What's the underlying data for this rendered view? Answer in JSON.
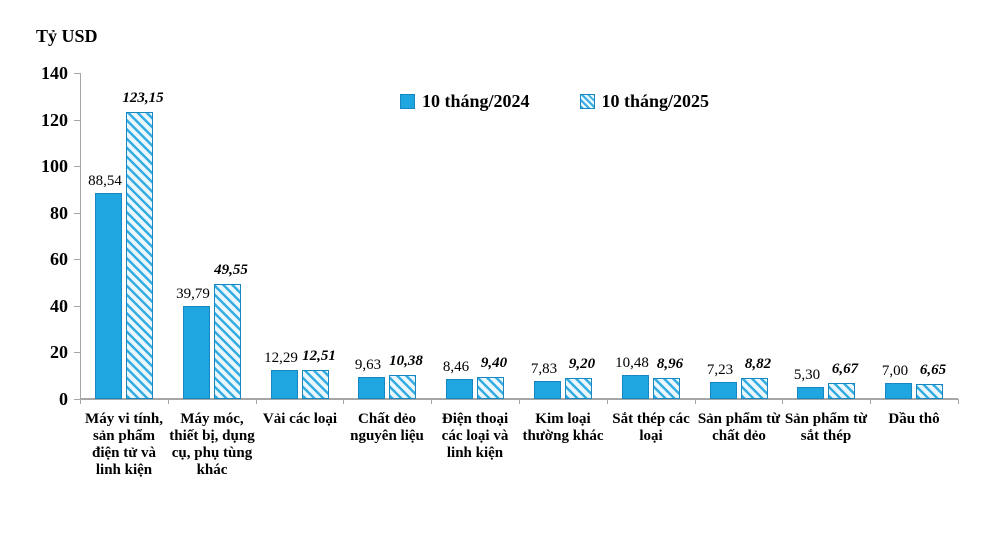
{
  "chart_data": {
    "type": "bar",
    "axis_title": "Tỷ USD",
    "xlabel": "",
    "ylabel": "Tỷ USD",
    "ylim": [
      0,
      140
    ],
    "ytick_step": 20,
    "grid": false,
    "legend_position": "top-center-inside",
    "decimal_separator": ",",
    "value_label_decimals": 2,
    "categories": [
      "Máy vi tính, sản phẩm điện tử và linh kiện",
      "Máy móc, thiết bị, dụng cụ, phụ tùng khác",
      "Vải các loại",
      "Chất dẻo nguyên liệu",
      "Điện thoại các loại và linh kiện",
      "Kim loại thường khác",
      "Sắt thép các loại",
      "Sản phẩm từ chất dẻo",
      "Sản phẩm từ sắt thép",
      "Dầu thô"
    ],
    "series": [
      {
        "name": "10 tháng/2024",
        "style": "solid",
        "values": [
          88.54,
          39.79,
          12.29,
          9.63,
          8.46,
          7.83,
          10.48,
          7.23,
          5.3,
          7.0
        ],
        "value_labels": [
          "88,54",
          "39,79",
          "12,29",
          "9,63",
          "8,46",
          "7,83",
          "10,48",
          "7,23",
          "5,30",
          "7,00"
        ]
      },
      {
        "name": "10 tháng/2025",
        "style": "hatched",
        "values": [
          123.15,
          49.55,
          12.51,
          10.38,
          9.4,
          9.2,
          8.96,
          8.82,
          6.67,
          6.65
        ],
        "value_labels": [
          "123,15",
          "49,55",
          "12,51",
          "10,38",
          "9,40",
          "9,20",
          "8,96",
          "8,82",
          "6,67",
          "6,65"
        ]
      }
    ],
    "colors": {
      "solid_fill": "#1FA6E0",
      "bar_border": "#1787C2",
      "hatch_stripe": "#35ADE3",
      "hatch_bg": "#EAF7FD",
      "axis": "#A6A6A6",
      "text": "#000000"
    },
    "yticks": [
      0,
      20,
      40,
      60,
      80,
      100,
      120,
      140
    ]
  }
}
